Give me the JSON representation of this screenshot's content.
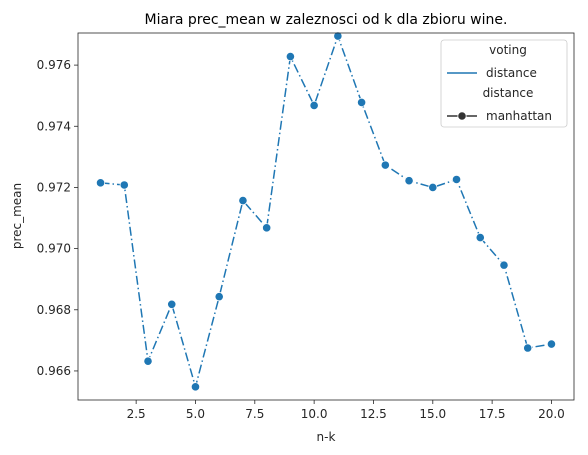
{
  "chart_data": {
    "type": "line",
    "title": "Miara prec_mean w zaleznosci od k dla zbioru wine.",
    "xlabel": "n-k",
    "ylabel": "prec_mean",
    "xlim": [
      0.05,
      20.95
    ],
    "ylim": [
      0.96505,
      0.97705
    ],
    "xticks": [
      2.5,
      5.0,
      7.5,
      10.0,
      12.5,
      15.0,
      17.5,
      20.0
    ],
    "xtick_labels": [
      "2.5",
      "5.0",
      "7.5",
      "10.0",
      "12.5",
      "15.0",
      "17.5",
      "20.0"
    ],
    "yticks": [
      0.966,
      0.968,
      0.97,
      0.972,
      0.974,
      0.976
    ],
    "ytick_labels": [
      "0.966",
      "0.968",
      "0.970",
      "0.972",
      "0.974",
      "0.976"
    ],
    "grid": false,
    "legend_position": "top-right",
    "legend": [
      {
        "label": "voting",
        "kind": "heading"
      },
      {
        "label": "distance",
        "kind": "line"
      },
      {
        "label": "distance",
        "kind": "heading"
      },
      {
        "label": "manhattan",
        "kind": "marker-line"
      }
    ],
    "series": [
      {
        "color": "#1f77b4",
        "linestyle": "dashdot",
        "marker": "circle",
        "x": [
          1,
          2,
          3,
          4,
          5,
          6,
          7,
          8,
          9,
          10,
          11,
          12,
          13,
          14,
          15,
          16,
          17,
          18,
          19,
          20
        ],
        "y": [
          0.97215,
          0.97208,
          0.96632,
          0.96818,
          0.96548,
          0.96843,
          0.97157,
          0.97068,
          0.97628,
          0.97468,
          0.97695,
          0.97478,
          0.97273,
          0.97222,
          0.972,
          0.97226,
          0.97036,
          0.96946,
          0.96675,
          0.96688
        ]
      }
    ]
  }
}
